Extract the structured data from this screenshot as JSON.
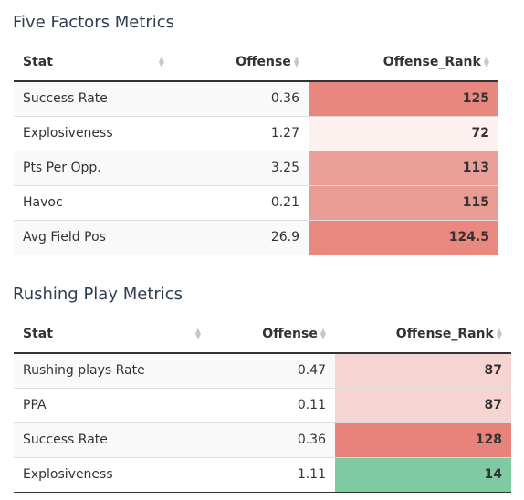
{
  "tables": [
    {
      "title": "Five Factors Metrics",
      "columns": {
        "stat": "Stat",
        "offense": "Offense",
        "offense_rank": "Offense_Rank"
      },
      "rows": [
        {
          "stat": "Success Rate",
          "offense": "0.36",
          "offense_rank": "125",
          "rank_color": "#e8877f"
        },
        {
          "stat": "Explosiveness",
          "offense": "1.27",
          "offense_rank": "72",
          "rank_color": "#fdf1f0"
        },
        {
          "stat": "Pts Per Opp.",
          "offense": "3.25",
          "offense_rank": "113",
          "rank_color": "#eb9f99"
        },
        {
          "stat": "Havoc",
          "offense": "0.21",
          "offense_rank": "115",
          "rank_color": "#ea9b94"
        },
        {
          "stat": "Avg Field Pos",
          "offense": "26.9",
          "offense_rank": "124.5",
          "rank_color": "#e8887f"
        }
      ]
    },
    {
      "title": "Rushing Play Metrics",
      "columns": {
        "stat": "Stat",
        "offense": "Offense",
        "offense_rank": "Offense_Rank"
      },
      "rows": [
        {
          "stat": "Rushing plays Rate",
          "offense": "0.47",
          "offense_rank": "87",
          "rank_color": "#f6d4d1"
        },
        {
          "stat": "PPA",
          "offense": "0.11",
          "offense_rank": "87",
          "rank_color": "#f6d4d1"
        },
        {
          "stat": "Success Rate",
          "offense": "0.36",
          "offense_rank": "128",
          "rank_color": "#e8837b"
        },
        {
          "stat": "Explosiveness",
          "offense": "1.11",
          "offense_rank": "14",
          "rank_color": "#7fcaa3"
        }
      ]
    }
  ]
}
